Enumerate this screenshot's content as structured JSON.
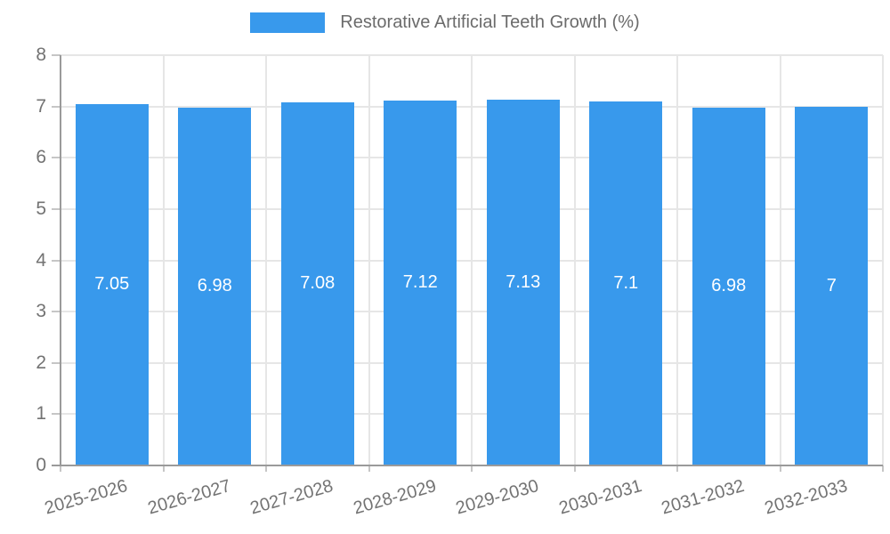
{
  "chart_data": {
    "type": "bar",
    "title": "Restorative Artificial Teeth Growth (%)",
    "categories": [
      "2025-2026",
      "2026-2027",
      "2027-2028",
      "2028-2029",
      "2029-2030",
      "2030-2031",
      "2031-2032",
      "2032-2033"
    ],
    "values": [
      7.05,
      6.98,
      7.08,
      7.12,
      7.13,
      7.1,
      6.98,
      7
    ],
    "value_labels": [
      "7.05",
      "6.98",
      "7.08",
      "7.12",
      "7.13",
      "7.1",
      "6.98",
      "7"
    ],
    "xlabel": "",
    "ylabel": "",
    "ylim": [
      0,
      8
    ],
    "yticks": [
      0,
      1,
      2,
      3,
      4,
      5,
      6,
      7,
      8
    ],
    "grid": true,
    "legend_position": "top",
    "legend_entries": [
      "Restorative Artificial Teeth Growth (%)"
    ],
    "colors": {
      "bar": "#3899ec",
      "value_label": "#ffffff",
      "grid": "#e6e6e6",
      "axis": "#9a9a9a",
      "tick_mark": "#c6c6c6",
      "tick_text": "#737373",
      "legend_text": "#6b6b6b",
      "background": "#ffffff"
    }
  }
}
